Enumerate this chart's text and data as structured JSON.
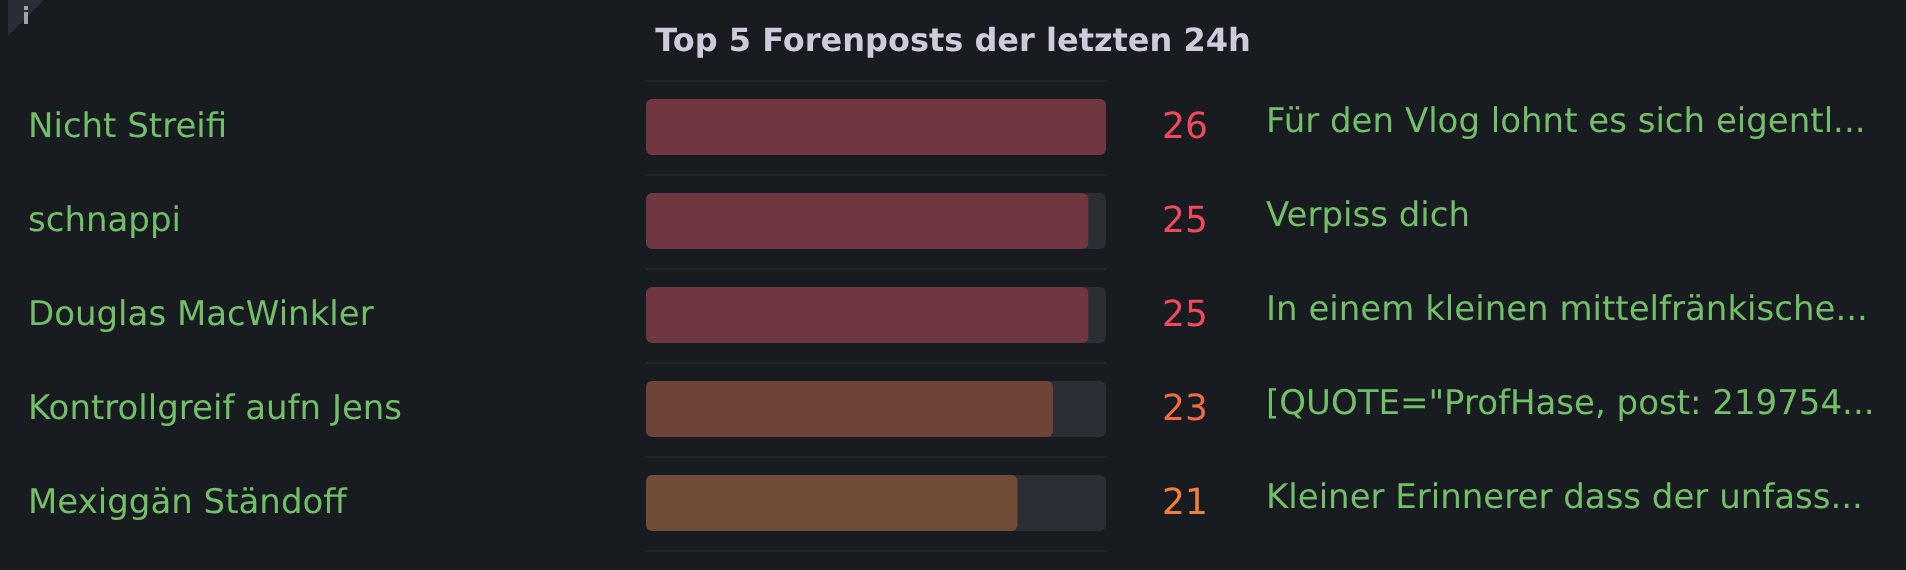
{
  "chart_data": {
    "type": "bar",
    "orientation": "horizontal",
    "title": "Top 5 Forenposts der letzten 24h",
    "categories": [
      "Nicht Streifi",
      "schnappi",
      "Douglas MacWinkler",
      "Kontrollgreif aufn Jens",
      "Mexiggän Ständoff"
    ],
    "values": [
      26,
      25,
      25,
      23,
      21
    ],
    "colors": [
      "#f2495c",
      "#f2495c",
      "#f2495c",
      "#f26a45",
      "#f2803a"
    ],
    "data_labels": true,
    "tick_labels": "y",
    "annotations": [
      "Für den Vlog lohnt es sich eigentl...",
      "Verpiss dich",
      "In einem kleinen mittelfränkische...",
      "[QUOTE=\"ProfHase, post: 219754...",
      "Kleiner Erinnerer dass der unfass..."
    ]
  }
}
